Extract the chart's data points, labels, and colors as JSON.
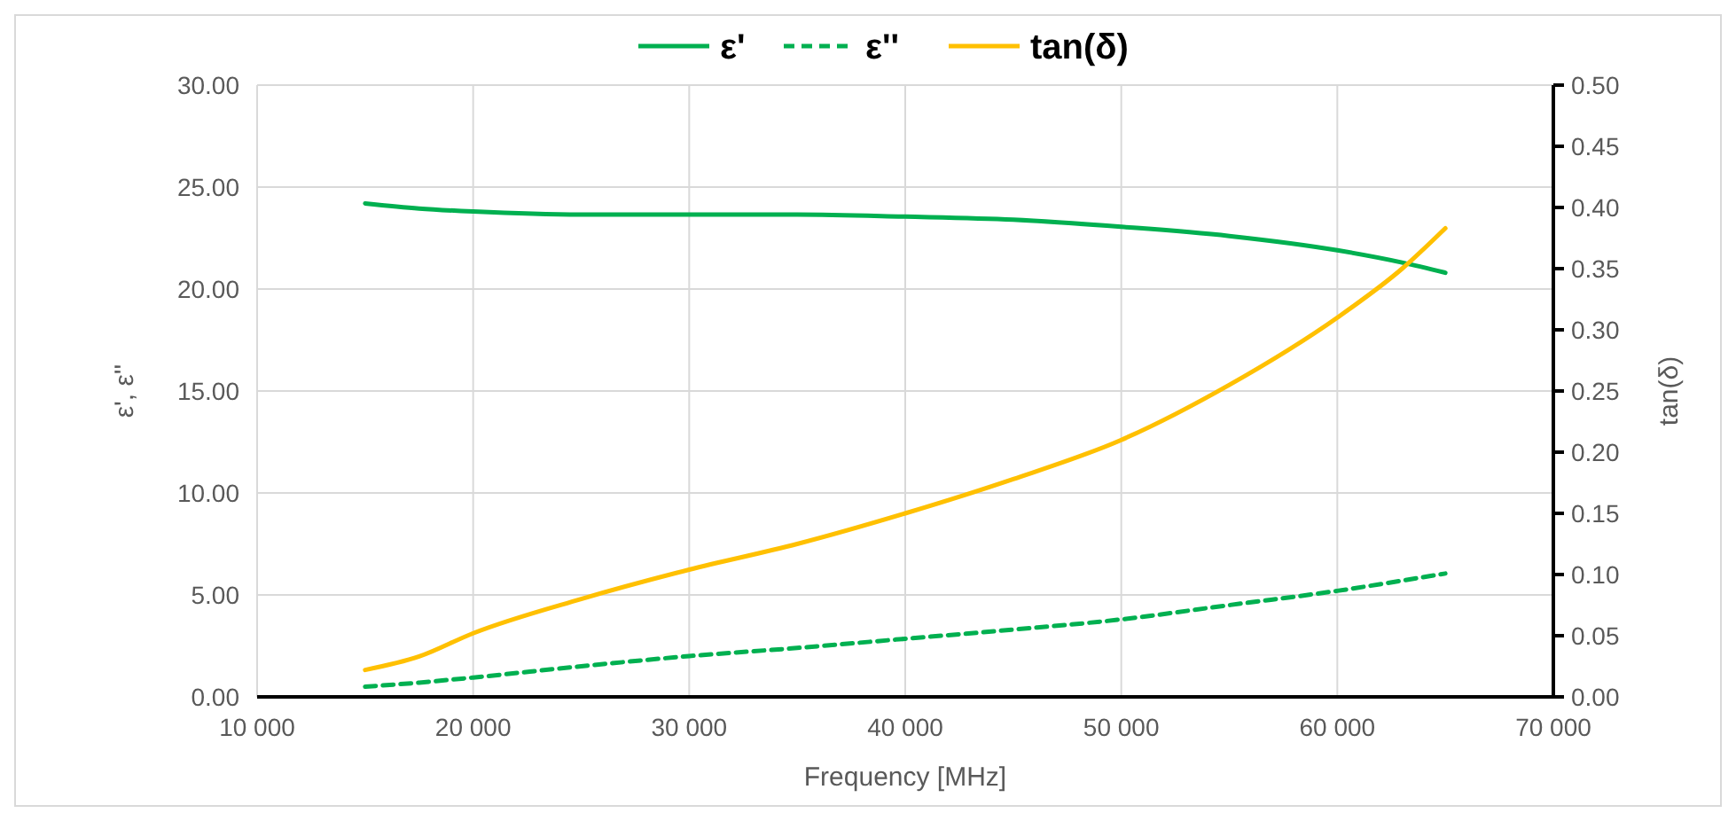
{
  "chart_data": {
    "type": "line",
    "xlabel": "Frequency [MHz]",
    "ylabel": "ε', ε''",
    "y2label": "tan(δ)",
    "x": [
      15000,
      17500,
      20000,
      25000,
      30000,
      35000,
      40000,
      45000,
      50000,
      55000,
      60000,
      63000,
      65000
    ],
    "series": [
      {
        "name": "ε'",
        "color": "#00b050",
        "line_style": "solid",
        "values": [
          24.2,
          23.95,
          23.8,
          23.65,
          23.65,
          23.65,
          23.55,
          23.4,
          23.05,
          22.6,
          21.9,
          21.3,
          20.8
        ]
      },
      {
        "name": "ε''",
        "color": "#00b050",
        "line_style": "dashed",
        "values": [
          0.5,
          0.7,
          0.95,
          1.5,
          2.0,
          2.4,
          2.85,
          3.3,
          3.8,
          4.5,
          5.2,
          5.7,
          6.05
        ]
      },
      {
        "name": "tan(δ)",
        "color": "#ffc000",
        "line_style": "solid",
        "axis": "y2",
        "values": [
          0.022,
          0.033,
          0.052,
          0.08,
          0.104,
          0.125,
          0.15,
          0.178,
          0.21,
          0.255,
          0.31,
          0.35,
          0.383
        ]
      }
    ],
    "xlim": [
      10000,
      70000
    ],
    "xticks": [
      {
        "value": 10000,
        "label": "10 000"
      },
      {
        "value": 20000,
        "label": "20 000"
      },
      {
        "value": 30000,
        "label": "30 000"
      },
      {
        "value": 40000,
        "label": "40 000"
      },
      {
        "value": 50000,
        "label": "50 000"
      },
      {
        "value": 60000,
        "label": "60 000"
      },
      {
        "value": 70000,
        "label": "70 000"
      }
    ],
    "ylim": [
      0,
      30
    ],
    "yticks": [
      {
        "value": 0,
        "label": "0.00"
      },
      {
        "value": 5,
        "label": "5.00"
      },
      {
        "value": 10,
        "label": "10.00"
      },
      {
        "value": 15,
        "label": "15.00"
      },
      {
        "value": 20,
        "label": "20.00"
      },
      {
        "value": 25,
        "label": "25.00"
      },
      {
        "value": 30,
        "label": "30.00"
      }
    ],
    "y2lim": [
      0,
      0.5
    ],
    "y2ticks": [
      {
        "value": 0,
        "label": "0.00"
      },
      {
        "value": 0.05,
        "label": "0.05"
      },
      {
        "value": 0.1,
        "label": "0.10"
      },
      {
        "value": 0.15,
        "label": "0.15"
      },
      {
        "value": 0.2,
        "label": "0.20"
      },
      {
        "value": 0.25,
        "label": "0.25"
      },
      {
        "value": 0.3,
        "label": "0.30"
      },
      {
        "value": 0.35,
        "label": "0.35"
      },
      {
        "value": 0.4,
        "label": "0.40"
      },
      {
        "value": 0.45,
        "label": "0.45"
      },
      {
        "value": 0.5,
        "label": "0.50"
      }
    ],
    "grid": true,
    "legend": "top",
    "marker": "none"
  }
}
